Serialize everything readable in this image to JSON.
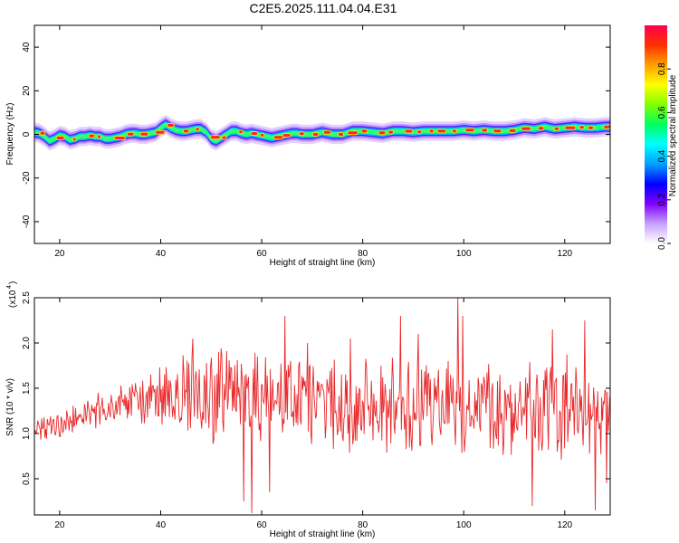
{
  "title": "C2E5.2025.111.04.04.E31",
  "chart_data": [
    {
      "type": "heatmap",
      "xlabel": "Height of straight line (km)",
      "ylabel": "Frequency (Hz)",
      "xlim": [
        15,
        129
      ],
      "ylim": [
        -50,
        50
      ],
      "xticks": [
        "20",
        "40",
        "60",
        "80",
        "100",
        "120"
      ],
      "yticks": [
        "-40",
        "-20",
        "0",
        "20",
        "40"
      ],
      "ridge": {
        "x": [
          15,
          16,
          17,
          18,
          19,
          20,
          21,
          22,
          23,
          24,
          25,
          26,
          27,
          28,
          29,
          30,
          31,
          32,
          33,
          34,
          35,
          36,
          37,
          38,
          39,
          40,
          41,
          42,
          43,
          44,
          45,
          46,
          47,
          48,
          49,
          50,
          51,
          52,
          53,
          54,
          55,
          56,
          57,
          58,
          59,
          60,
          61,
          62,
          63,
          64,
          65,
          66,
          67,
          68,
          69,
          70,
          72,
          74,
          76,
          78,
          80,
          82,
          84,
          86,
          88,
          90,
          92,
          94,
          96,
          98,
          100,
          102,
          104,
          106,
          108,
          110,
          112,
          114,
          116,
          118,
          120,
          122,
          124,
          126,
          128,
          129
        ],
        "freq": [
          1,
          0.5,
          -1,
          -3,
          -2,
          -0.5,
          -1,
          -2.5,
          -2,
          -1,
          -1,
          -0.5,
          -1,
          -1,
          -2,
          -2,
          -1.5,
          -1,
          0,
          0.5,
          0.5,
          0,
          0,
          0.5,
          1,
          3,
          4.5,
          3,
          2,
          1.5,
          1.5,
          2,
          2.5,
          2.5,
          1,
          -2,
          -3,
          -1.5,
          0,
          1.5,
          1.5,
          0.5,
          0,
          0.5,
          0,
          -0.5,
          -1,
          -1.5,
          -1,
          -0.5,
          0,
          0.5,
          0.5,
          0,
          0,
          0,
          1,
          0,
          0,
          1.5,
          1.5,
          1,
          0.5,
          1.5,
          1.5,
          1,
          1.5,
          1.5,
          1.5,
          1.5,
          2,
          1.5,
          2,
          1.5,
          1.5,
          2,
          3,
          2.5,
          3.5,
          2.5,
          3,
          3.5,
          3,
          3,
          3.5,
          3.5
        ]
      },
      "colorbar": {
        "label": "Normalized spectral amplitude",
        "range": [
          0,
          1
        ],
        "ticks": [
          "0.0",
          "0.2",
          "0.4",
          "0.6",
          "0.8"
        ],
        "colors": [
          "#ffffff",
          "#c8a0ff",
          "#8000ff",
          "#0000ff",
          "#00a0ff",
          "#00ffff",
          "#00ff60",
          "#80ff00",
          "#ffff00",
          "#ffa000",
          "#ff3000",
          "#ff0050"
        ]
      }
    },
    {
      "type": "line",
      "xlabel": "Height of straight line (km)",
      "ylabel": "SNR (10 * v/v)",
      "multiplier_label": "(x10",
      "multiplier_exp": "4",
      "multiplier_close": ")",
      "xlim": [
        15,
        129
      ],
      "ylim": [
        0.1,
        2.5
      ],
      "xticks": [
        "20",
        "40",
        "60",
        "80",
        "100",
        "120"
      ],
      "yticks": [
        "0.5",
        "1.0",
        "1.5",
        "2.0",
        "2.5"
      ],
      "color": "#e8282a",
      "envelope": {
        "x": [
          15,
          20,
          25,
          30,
          35,
          40,
          45,
          50,
          55,
          60,
          65,
          70,
          75,
          80,
          85,
          90,
          95,
          100,
          105,
          110,
          115,
          120,
          125,
          129
        ],
        "mean": [
          1.02,
          1.1,
          1.2,
          1.28,
          1.35,
          1.38,
          1.42,
          1.4,
          1.4,
          1.38,
          1.35,
          1.34,
          1.33,
          1.32,
          1.32,
          1.3,
          1.3,
          1.3,
          1.28,
          1.28,
          1.25,
          1.25,
          1.22,
          1.2
        ],
        "amp": [
          0.12,
          0.15,
          0.15,
          0.2,
          0.25,
          0.35,
          0.5,
          0.55,
          0.55,
          0.5,
          0.5,
          0.45,
          0.45,
          0.45,
          0.5,
          0.5,
          0.5,
          0.5,
          0.5,
          0.5,
          0.55,
          0.55,
          0.5,
          0.45
        ]
      },
      "spikes": [
        {
          "x": 46.3,
          "y": 2.05
        },
        {
          "x": 51.5,
          "y": 1.9
        },
        {
          "x": 56.5,
          "y": 0.25
        },
        {
          "x": 58,
          "y": 0.12
        },
        {
          "x": 61.5,
          "y": 0.35
        },
        {
          "x": 64.6,
          "y": 2.3
        },
        {
          "x": 69,
          "y": 2.0
        },
        {
          "x": 77.5,
          "y": 2.05
        },
        {
          "x": 87.5,
          "y": 2.3
        },
        {
          "x": 91,
          "y": 2.1
        },
        {
          "x": 98.8,
          "y": 2.5
        },
        {
          "x": 99.8,
          "y": 2.3
        },
        {
          "x": 113.5,
          "y": 0.2
        },
        {
          "x": 117.5,
          "y": 2.15
        },
        {
          "x": 124,
          "y": 2.25
        },
        {
          "x": 126,
          "y": 0.15
        },
        {
          "x": 128.2,
          "y": 0.45
        }
      ]
    }
  ]
}
